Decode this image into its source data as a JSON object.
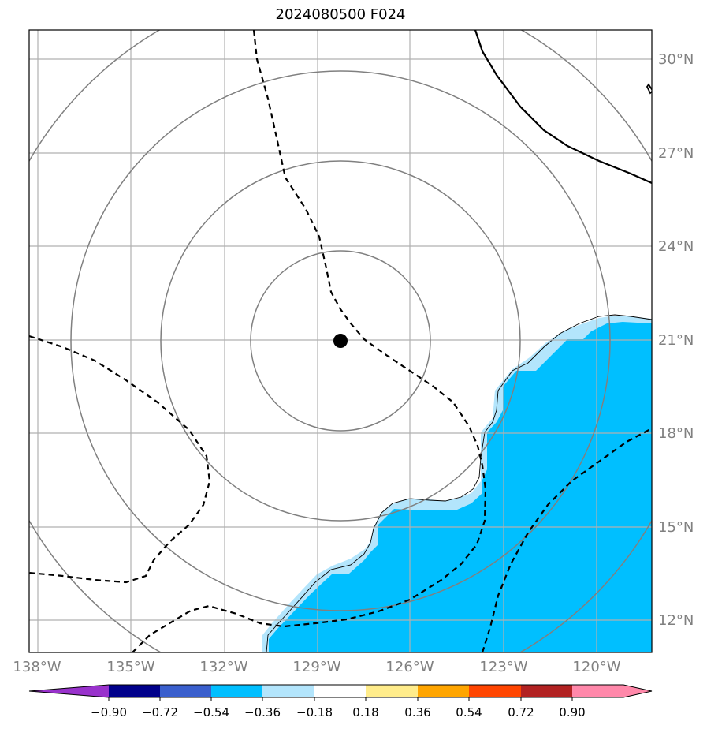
{
  "title": "2024080500 F024",
  "map": {
    "extent": {
      "lon_min": -138.3,
      "lon_max": -118.3,
      "lat_min": 11,
      "lat_max": 31
    },
    "longitude_ticks": [
      {
        "value": -138,
        "label": "138°W"
      },
      {
        "value": -135,
        "label": "135°W"
      },
      {
        "value": -132,
        "label": "132°W"
      },
      {
        "value": -129,
        "label": "129°W"
      },
      {
        "value": -126,
        "label": "126°W"
      },
      {
        "value": -123,
        "label": "123°W"
      },
      {
        "value": -120,
        "label": "120°W"
      }
    ],
    "latitude_ticks": [
      {
        "value": 12,
        "label": "12°N"
      },
      {
        "value": 15,
        "label": "15°N"
      },
      {
        "value": 18,
        "label": "18°N"
      },
      {
        "value": 21,
        "label": "21°N"
      },
      {
        "value": 24,
        "label": "24°N"
      },
      {
        "value": 27,
        "label": "27°N"
      },
      {
        "value": 30,
        "label": "30°N"
      }
    ],
    "storm_center": {
      "lon": -128.3,
      "lat": 21.0
    },
    "range_rings_degrees": [
      2.9,
      5.8,
      8.7,
      11.6
    ],
    "colors": {
      "grid": "#b0b0b0",
      "ring": "#808080",
      "filled_negative": "#00bfff",
      "filled_light": "#b3e5fc",
      "contour": "#000000",
      "marker": "#000000"
    }
  },
  "colorbar": {
    "levels": [
      "−0.90",
      "−0.72",
      "−0.54",
      "−0.36",
      "−0.18",
      "0.18",
      "0.36",
      "0.54",
      "0.72",
      "0.90"
    ],
    "colors": [
      "#9932cc",
      "#00008b",
      "#3a5fcd",
      "#00bfff",
      "#b3e5fc",
      "#ffffff",
      "#ffec8b",
      "#ffa500",
      "#ff4500",
      "#b22222",
      "#ff88aa"
    ]
  }
}
